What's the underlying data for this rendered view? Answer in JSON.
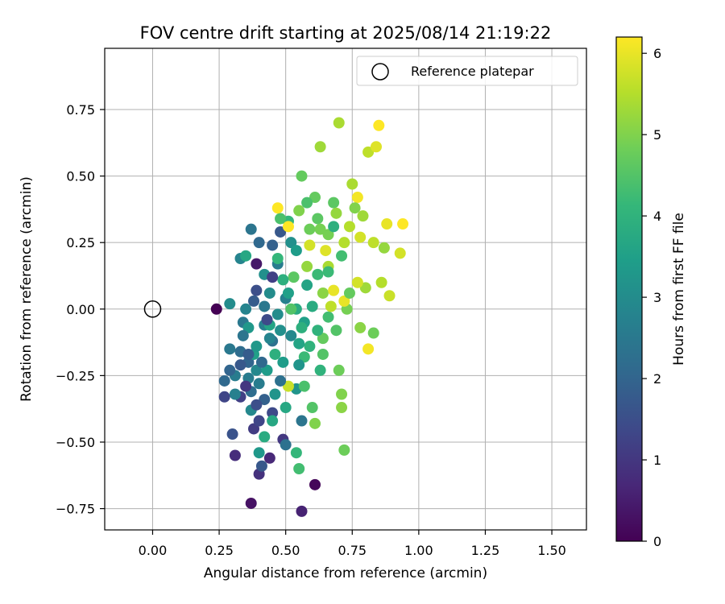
{
  "chart_data": {
    "type": "scatter",
    "title": "FOV centre drift starting at 2025/08/14 21:19:22",
    "xlabel": "Angular distance from reference (arcmin)",
    "ylabel": "Rotation from reference (arcmin)",
    "xlim": [
      -0.18,
      1.63
    ],
    "ylim": [
      -0.83,
      0.98
    ],
    "xticks": [
      0.0,
      0.25,
      0.5,
      0.75,
      1.0,
      1.25,
      1.5
    ],
    "xtick_labels": [
      "0.00",
      "0.25",
      "0.50",
      "0.75",
      "1.00",
      "1.25",
      "1.50"
    ],
    "yticks": [
      -0.75,
      -0.5,
      -0.25,
      0.0,
      0.25,
      0.5,
      0.75
    ],
    "ytick_labels": [
      "−0.75",
      "−0.50",
      "−0.25",
      "0.00",
      "0.25",
      "0.50",
      "0.75"
    ],
    "grid": true,
    "legend": {
      "location": "top-right",
      "entries": [
        "Reference platepar"
      ]
    },
    "reference_point": {
      "x": 0.0,
      "y": 0.0,
      "style": "hollow circle"
    },
    "colorbar": {
      "label": "Hours from first FF file",
      "min": 0,
      "max": 6.2,
      "ticks": [
        0,
        1,
        2,
        3,
        4,
        5,
        6
      ],
      "tick_labels": [
        "0",
        "1",
        "2",
        "3",
        "4",
        "5",
        "6"
      ],
      "colormap": "viridis",
      "colormap_stops": [
        "#440154",
        "#482878",
        "#3e4989",
        "#31688e",
        "#26828e",
        "#1f9e89",
        "#35b779",
        "#6ece58",
        "#b5de2b",
        "#fde725"
      ]
    },
    "points": [
      [
        0.24,
        0.0,
        0.0
      ],
      [
        0.61,
        -0.66,
        0.1
      ],
      [
        0.37,
        -0.73,
        0.3
      ],
      [
        0.39,
        0.17,
        0.4
      ],
      [
        0.56,
        -0.76,
        0.6
      ],
      [
        0.44,
        -0.56,
        0.7
      ],
      [
        0.31,
        -0.55,
        0.8
      ],
      [
        0.4,
        -0.62,
        0.9
      ],
      [
        0.49,
        -0.49,
        1.0
      ],
      [
        0.38,
        -0.45,
        1.1
      ],
      [
        0.33,
        -0.33,
        1.2
      ],
      [
        0.4,
        -0.42,
        1.3
      ],
      [
        0.45,
        -0.39,
        1.4
      ],
      [
        0.39,
        0.07,
        1.5
      ],
      [
        0.3,
        -0.47,
        1.6
      ],
      [
        0.41,
        -0.59,
        1.7
      ],
      [
        0.48,
        0.29,
        1.7
      ],
      [
        0.38,
        0.03,
        1.8
      ],
      [
        0.42,
        -0.34,
        1.9
      ],
      [
        0.36,
        -0.2,
        2.0
      ],
      [
        0.4,
        0.25,
        2.1
      ],
      [
        0.27,
        -0.27,
        2.1
      ],
      [
        0.33,
        -0.16,
        2.2
      ],
      [
        0.45,
        -0.12,
        2.3
      ],
      [
        0.5,
        -0.51,
        2.3
      ],
      [
        0.56,
        -0.42,
        2.4
      ],
      [
        0.37,
        0.3,
        2.4
      ],
      [
        0.29,
        -0.15,
        2.5
      ],
      [
        0.34,
        -0.05,
        2.5
      ],
      [
        0.47,
        0.17,
        2.6
      ],
      [
        0.31,
        -0.25,
        2.6
      ],
      [
        0.36,
        -0.26,
        2.6
      ],
      [
        0.42,
        -0.06,
        2.7
      ],
      [
        0.5,
        0.04,
        2.7
      ],
      [
        0.35,
        0.0,
        2.8
      ],
      [
        0.33,
        0.19,
        2.8
      ],
      [
        0.44,
        -0.11,
        2.8
      ],
      [
        0.52,
        -0.1,
        2.9
      ],
      [
        0.39,
        -0.23,
        2.9
      ],
      [
        0.47,
        -0.02,
        3.0
      ],
      [
        0.29,
        0.02,
        3.0
      ],
      [
        0.42,
        0.13,
        3.1
      ],
      [
        0.52,
        0.25,
        3.1
      ],
      [
        0.46,
        -0.32,
        3.2
      ],
      [
        0.54,
        -0.3,
        3.2
      ],
      [
        0.4,
        -0.54,
        3.3
      ],
      [
        0.36,
        -0.07,
        3.3
      ],
      [
        0.49,
        -0.2,
        3.4
      ],
      [
        0.54,
        0.22,
        3.4
      ],
      [
        0.38,
        -0.17,
        3.5
      ],
      [
        0.57,
        -0.05,
        3.5
      ],
      [
        0.44,
        -0.06,
        3.6
      ],
      [
        0.58,
        0.09,
        3.6
      ],
      [
        0.35,
        0.2,
        3.7
      ],
      [
        0.5,
        -0.37,
        3.7
      ],
      [
        0.54,
        0.0,
        3.8
      ],
      [
        0.42,
        -0.48,
        3.8
      ],
      [
        0.56,
        -0.07,
        3.9
      ],
      [
        0.46,
        -0.17,
        3.9
      ],
      [
        0.59,
        -0.14,
        4.0
      ],
      [
        0.63,
        -0.23,
        4.0
      ],
      [
        0.51,
        0.33,
        4.1
      ],
      [
        0.47,
        0.19,
        4.1
      ],
      [
        0.62,
        0.13,
        4.2
      ],
      [
        0.55,
        -0.6,
        4.3
      ],
      [
        0.66,
        -0.03,
        4.3
      ],
      [
        0.57,
        -0.29,
        4.4
      ],
      [
        0.48,
        0.34,
        4.4
      ],
      [
        0.52,
        0.0,
        4.5
      ],
      [
        0.6,
        -0.37,
        4.5
      ],
      [
        0.68,
        0.4,
        4.6
      ],
      [
        0.62,
        0.34,
        4.6
      ],
      [
        0.64,
        -0.11,
        4.7
      ],
      [
        0.56,
        0.5,
        4.7
      ],
      [
        0.7,
        -0.23,
        4.8
      ],
      [
        0.59,
        0.3,
        4.8
      ],
      [
        0.72,
        -0.53,
        4.8
      ],
      [
        0.66,
        0.28,
        4.9
      ],
      [
        0.73,
        0.0,
        4.9
      ],
      [
        0.55,
        0.37,
        5.0
      ],
      [
        0.61,
        -0.43,
        5.0
      ],
      [
        0.71,
        -0.37,
        5.1
      ],
      [
        0.64,
        0.06,
        5.1
      ],
      [
        0.78,
        -0.07,
        5.1
      ],
      [
        0.58,
        0.16,
        5.2
      ],
      [
        0.69,
        0.36,
        5.2
      ],
      [
        0.8,
        0.08,
        5.3
      ],
      [
        0.63,
        0.61,
        5.3
      ],
      [
        0.75,
        0.47,
        5.4
      ],
      [
        0.7,
        0.7,
        5.4
      ],
      [
        0.72,
        0.25,
        5.5
      ],
      [
        0.86,
        0.1,
        5.5
      ],
      [
        0.67,
        0.01,
        5.6
      ],
      [
        0.81,
        0.59,
        5.6
      ],
      [
        0.89,
        0.05,
        5.7
      ],
      [
        0.51,
        -0.29,
        5.7
      ],
      [
        0.93,
        0.21,
        5.8
      ],
      [
        0.78,
        0.27,
        5.8
      ],
      [
        0.65,
        0.22,
        5.9
      ],
      [
        0.84,
        0.61,
        5.9
      ],
      [
        0.88,
        0.32,
        6.0
      ],
      [
        0.68,
        0.07,
        6.0
      ],
      [
        0.81,
        -0.15,
        6.1
      ],
      [
        0.77,
        0.42,
        6.1
      ],
      [
        0.85,
        0.69,
        6.2
      ],
      [
        0.47,
        0.38,
        6.2
      ],
      [
        0.94,
        0.32,
        6.2
      ],
      [
        0.51,
        0.31,
        6.2
      ],
      [
        0.72,
        0.03,
        6.0
      ],
      [
        0.59,
        0.24,
        5.8
      ],
      [
        0.77,
        0.1,
        5.8
      ],
      [
        0.83,
        0.25,
        5.6
      ],
      [
        0.74,
        0.31,
        5.5
      ],
      [
        0.66,
        0.16,
        5.4
      ],
      [
        0.79,
        0.35,
        5.3
      ],
      [
        0.87,
        0.23,
        5.2
      ],
      [
        0.71,
        -0.32,
        5.0
      ],
      [
        0.76,
        0.38,
        5.0
      ],
      [
        0.63,
        0.3,
        4.9
      ],
      [
        0.83,
        -0.09,
        4.8
      ],
      [
        0.61,
        0.42,
        4.7
      ],
      [
        0.74,
        0.06,
        4.7
      ],
      [
        0.53,
        0.12,
        4.6
      ],
      [
        0.69,
        -0.08,
        4.5
      ],
      [
        0.64,
        -0.17,
        4.5
      ],
      [
        0.58,
        0.4,
        4.4
      ],
      [
        0.71,
        0.2,
        4.3
      ],
      [
        0.57,
        -0.18,
        4.2
      ],
      [
        0.66,
        0.14,
        4.2
      ],
      [
        0.54,
        -0.54,
        4.1
      ],
      [
        0.62,
        -0.08,
        4.0
      ],
      [
        0.68,
        0.31,
        3.9
      ],
      [
        0.49,
        0.11,
        3.9
      ],
      [
        0.6,
        0.01,
        3.8
      ],
      [
        0.45,
        -0.42,
        3.7
      ],
      [
        0.55,
        -0.13,
        3.6
      ],
      [
        0.51,
        0.06,
        3.5
      ],
      [
        0.43,
        -0.23,
        3.4
      ],
      [
        0.39,
        -0.14,
        3.3
      ],
      [
        0.55,
        -0.21,
        3.2
      ],
      [
        0.48,
        -0.08,
        3.1
      ],
      [
        0.44,
        0.06,
        3.0
      ],
      [
        0.37,
        -0.38,
        2.9
      ],
      [
        0.31,
        -0.32,
        2.7
      ],
      [
        0.4,
        -0.28,
        2.6
      ],
      [
        0.42,
        0.01,
        2.5
      ],
      [
        0.34,
        -0.1,
        2.4
      ],
      [
        0.48,
        -0.27,
        2.3
      ],
      [
        0.37,
        -0.31,
        2.2
      ],
      [
        0.41,
        -0.2,
        2.1
      ],
      [
        0.29,
        -0.23,
        2.0
      ],
      [
        0.45,
        0.24,
        1.9
      ],
      [
        0.36,
        -0.17,
        1.8
      ],
      [
        0.33,
        -0.21,
        1.7
      ],
      [
        0.39,
        -0.36,
        1.5
      ],
      [
        0.43,
        -0.04,
        1.4
      ],
      [
        0.27,
        -0.33,
        1.3
      ],
      [
        0.45,
        0.12,
        1.2
      ],
      [
        0.35,
        -0.29,
        1.0
      ]
    ]
  }
}
